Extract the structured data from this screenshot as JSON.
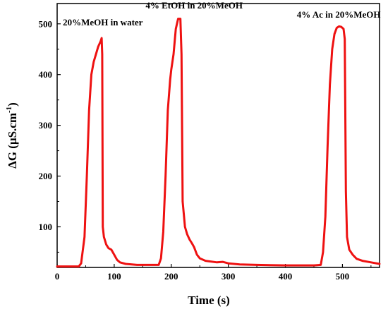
{
  "chart_data": {
    "type": "line",
    "xlabel": "Time (s)",
    "ylabel": {
      "prefix": "ΔG (μS.cm",
      "superscript": "-1",
      "suffix": ")"
    },
    "xlim": [
      0,
      565
    ],
    "ylim": [
      20,
      540
    ],
    "x_ticks": [
      0,
      100,
      200,
      300,
      400,
      500
    ],
    "y_ticks": [
      100,
      200,
      300,
      400,
      500
    ],
    "grid": false,
    "series": [
      {
        "color": "#ee1111",
        "x": [
          0,
          20,
          38,
          42,
          48,
          52,
          56,
          60,
          64,
          68,
          72,
          76,
          78,
          79,
          80,
          82,
          86,
          90,
          95,
          100,
          105,
          110,
          120,
          140,
          160,
          178,
          182,
          186,
          190,
          194,
          198,
          200,
          204,
          208,
          212,
          216,
          218,
          220,
          224,
          228,
          232,
          236,
          240,
          245,
          250,
          260,
          280,
          290,
          300,
          320,
          350,
          400,
          450,
          462,
          466,
          470,
          474,
          478,
          482,
          486,
          490,
          494,
          498,
          502,
          504,
          506,
          508,
          512,
          518,
          525,
          535,
          550,
          565
        ],
        "y": [
          22,
          22,
          22,
          28,
          80,
          200,
          330,
          400,
          425,
          440,
          455,
          465,
          472,
          440,
          100,
          80,
          65,
          58,
          55,
          45,
          35,
          30,
          27,
          25,
          25,
          25,
          38,
          90,
          200,
          330,
          390,
          410,
          440,
          490,
          510,
          510,
          440,
          150,
          100,
          85,
          75,
          68,
          60,
          45,
          38,
          33,
          30,
          31,
          28,
          26,
          25,
          24,
          24,
          25,
          50,
          120,
          260,
          380,
          450,
          480,
          492,
          495,
          494,
          490,
          470,
          170,
          80,
          55,
          45,
          37,
          33,
          30,
          27
        ]
      }
    ],
    "annotations": [
      {
        "text": "20%MeOH in water",
        "x": 10,
        "y": 497
      },
      {
        "text": "4% EtOH in 20%MeOH",
        "x": 155,
        "y": 530
      },
      {
        "text": "4% Ac in 20%MeOH",
        "x": 420,
        "y": 512
      }
    ]
  }
}
